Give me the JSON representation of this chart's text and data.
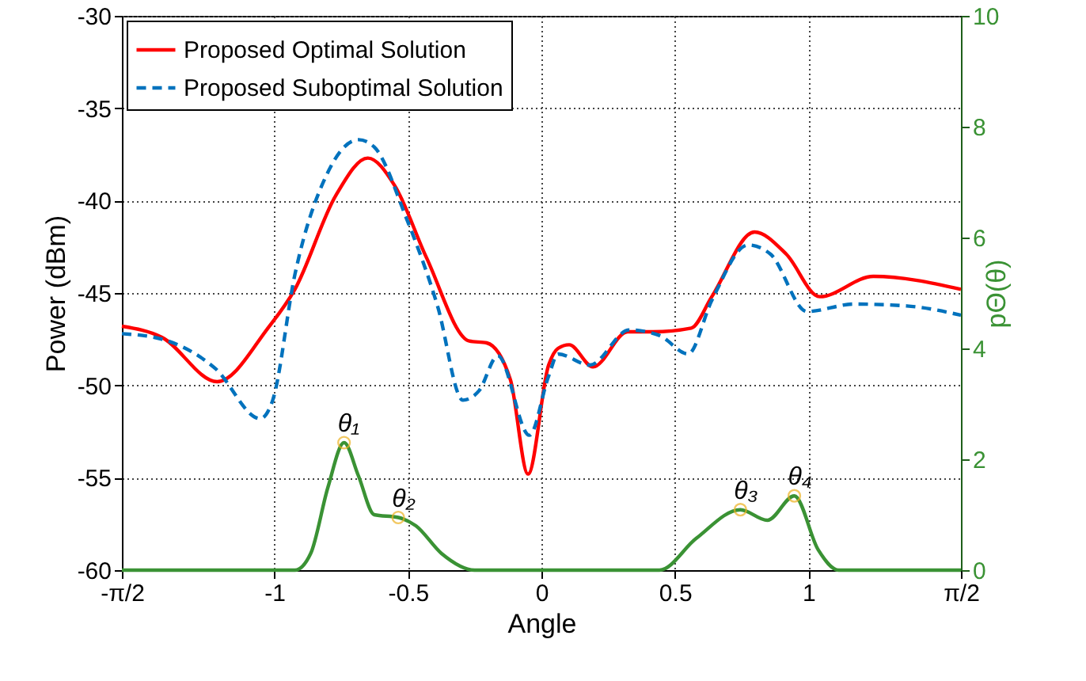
{
  "chart_data": {
    "type": "line",
    "xlabel": "Angle",
    "ylabel": "Power (dBm)",
    "y2label": "pΘ(θ)",
    "xlim": [
      -1.5708,
      1.5708
    ],
    "xticks": [
      {
        "value": -1.5708,
        "label": "-π/2"
      },
      -1,
      -0.5,
      0,
      0.5,
      1,
      {
        "value": 1.5708,
        "label": "π/2"
      }
    ],
    "ylim": [
      -60,
      -30
    ],
    "yticks": [
      -60,
      -55,
      -50,
      -45,
      -40,
      -35,
      -30
    ],
    "y2lim": [
      0,
      10
    ],
    "y2ticks": [
      0,
      2,
      4,
      6,
      8,
      10
    ],
    "grid": true,
    "legend": "top left",
    "series": [
      {
        "name": "Proposed Optimal Solution",
        "color": "#ff0000",
        "line_style": "solid",
        "x": [
          -1.5708,
          -1.421,
          -1.214,
          -1.024,
          -0.923,
          -0.769,
          -0.65,
          -0.549,
          -0.43,
          -0.27,
          -0.205,
          -0.116,
          -0.05,
          0.027,
          0.062,
          0.104,
          0.193,
          0.323,
          0.418,
          0.561,
          0.638,
          0.798,
          0.917,
          1.042,
          1.243,
          1.5708
        ],
        "values": [
          -46.8,
          -47.4,
          -49.8,
          -46.9,
          -44.8,
          -39.7,
          -37.7,
          -39.2,
          -43.1,
          -47.6,
          -47.7,
          -49.7,
          -54.8,
          -48.9,
          -48.0,
          -47.8,
          -49.0,
          -47.1,
          -47.1,
          -46.9,
          -45.2,
          -41.7,
          -42.9,
          -45.2,
          -44.1,
          -44.8
        ]
      },
      {
        "name": "Proposed Suboptimal Solution",
        "color": "#0072bd",
        "line_style": "dashed",
        "x": [
          -1.5708,
          -1.421,
          -1.22,
          -1.053,
          -1.006,
          -0.923,
          -0.804,
          -0.685,
          -0.626,
          -0.507,
          -0.389,
          -0.294,
          -0.234,
          -0.163,
          -0.045,
          0.027,
          0.062,
          0.181,
          0.329,
          0.442,
          0.549,
          0.638,
          0.774,
          0.858,
          0.994,
          1.172,
          1.368,
          1.5708
        ],
        "values": [
          -47.2,
          -47.5,
          -49.1,
          -51.8,
          -50.8,
          -44.0,
          -38.6,
          -36.7,
          -37.1,
          -40.9,
          -45.7,
          -50.8,
          -50.3,
          -48.4,
          -52.7,
          -49.5,
          -48.3,
          -48.9,
          -47.0,
          -47.3,
          -48.3,
          -45.4,
          -42.4,
          -42.9,
          -46.0,
          -45.6,
          -45.7,
          -46.2
        ]
      },
      {
        "color": "#3a9234",
        "axis": "y2",
        "line_style": "solid",
        "x": [
          -1.5708,
          -0.923,
          -0.864,
          -0.799,
          -0.739,
          -0.685,
          -0.626,
          -0.536,
          -0.47,
          -0.374,
          -0.25,
          0.442,
          0.579,
          0.745,
          0.846,
          0.947,
          1.036,
          1.113,
          1.5708
        ],
        "values": [
          0,
          0,
          0.3,
          1.5,
          2.3,
          1.7,
          1.0,
          0.95,
          0.8,
          0.3,
          0,
          0,
          0.57,
          1.09,
          0.9,
          1.34,
          0.37,
          0,
          0
        ]
      },
      {
        "type": "scatter",
        "marker": "circle",
        "color": "#edb120",
        "axis": "y2",
        "x": [
          -0.739,
          -0.536,
          0.745,
          0.947
        ],
        "values": [
          2.3,
          0.95,
          1.09,
          1.34
        ]
      }
    ],
    "annotations": [
      {
        "text": "θ₁",
        "x": -0.739,
        "y": -53.1
      },
      {
        "text": "θ₂",
        "x": -0.536,
        "y": -57.15
      },
      {
        "text": "θ₃",
        "x": 0.745,
        "y": -56.73
      },
      {
        "text": "θ₄",
        "x": 0.947,
        "y": -55.98
      }
    ]
  }
}
